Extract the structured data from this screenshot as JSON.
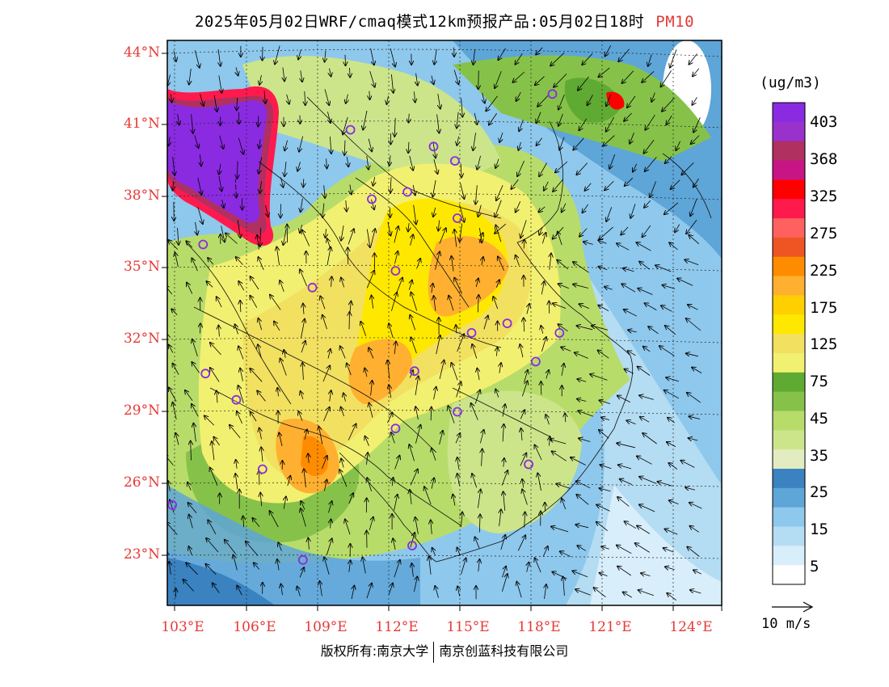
{
  "title": {
    "main": "2025年05月02日WRF/cmaq模式12km预报产品:05月02日18时",
    "pollutant": "PM10"
  },
  "axes": {
    "lat_labels": [
      "44°N",
      "41°N",
      "38°N",
      "35°N",
      "32°N",
      "29°N",
      "26°N",
      "23°N"
    ],
    "lon_labels": [
      "103°E",
      "106°E",
      "109°E",
      "112°E",
      "115°E",
      "118°E",
      "121°E",
      "124°E"
    ]
  },
  "colorbar": {
    "unit": "(ug/m3)",
    "labels": [
      "403",
      "368",
      "325",
      "275",
      "225",
      "175",
      "125",
      "75",
      "45",
      "35",
      "25",
      "15",
      "5"
    ],
    "colors": [
      "#8a2be2",
      "#9932cc",
      "#b03060",
      "#c71585",
      "#ff0000",
      "#ff1a4d",
      "#ff6060",
      "#ee5522",
      "#ff8c00",
      "#ffb030",
      "#ffd000",
      "#ffe800",
      "#f2e060",
      "#f2f070",
      "#5faa33",
      "#86c24a",
      "#b8dc6a",
      "#cce58a",
      "#e2ecc0",
      "#3a82c0",
      "#5ea5d8",
      "#8ec8ec",
      "#b4dcf2",
      "#d8eefa",
      "#ffffff"
    ]
  },
  "wind_legend": {
    "label": "10 m/s"
  },
  "cities": [
    {
      "lon": 118.9,
      "lat": 42.3
    },
    {
      "lon": 110.4,
      "lat": 40.8
    },
    {
      "lon": 113.9,
      "lat": 40.1
    },
    {
      "lon": 114.8,
      "lat": 39.5
    },
    {
      "lon": 111.3,
      "lat": 37.9
    },
    {
      "lon": 112.8,
      "lat": 38.2
    },
    {
      "lon": 114.9,
      "lat": 37.1
    },
    {
      "lon": 105.5,
      "lat": 38.4
    },
    {
      "lon": 104.2,
      "lat": 36.0
    },
    {
      "lon": 112.3,
      "lat": 34.9
    },
    {
      "lon": 108.8,
      "lat": 34.2
    },
    {
      "lon": 117.0,
      "lat": 32.7
    },
    {
      "lon": 115.5,
      "lat": 32.3
    },
    {
      "lon": 119.2,
      "lat": 32.3
    },
    {
      "lon": 118.2,
      "lat": 31.1
    },
    {
      "lon": 104.3,
      "lat": 30.6
    },
    {
      "lon": 113.1,
      "lat": 30.7
    },
    {
      "lon": 105.6,
      "lat": 29.5
    },
    {
      "lon": 114.9,
      "lat": 29.0
    },
    {
      "lon": 112.3,
      "lat": 28.3
    },
    {
      "lon": 106.7,
      "lat": 26.6
    },
    {
      "lon": 117.9,
      "lat": 26.8
    },
    {
      "lon": 102.9,
      "lat": 25.1
    },
    {
      "lon": 108.4,
      "lat": 22.8
    },
    {
      "lon": 113.0,
      "lat": 23.4
    }
  ],
  "footer": {
    "left": "版权所有:南京大学",
    "right": "南京创蓝科技有限公司"
  }
}
